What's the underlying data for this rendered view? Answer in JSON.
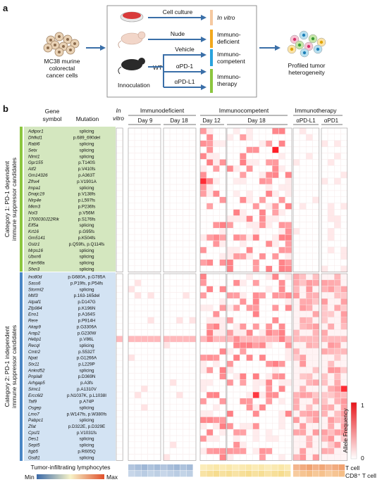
{
  "panel_a": {
    "letter": "a",
    "source_label": "MC38 murine colorectal cancer cells",
    "source_label_lines": [
      "MC38 murine",
      "colorectal",
      "cancer cells"
    ],
    "arrows": [
      "Cell culture",
      "Nude",
      "Vehicle",
      "αPD-1",
      "αPD-L1"
    ],
    "wt_label": "WT",
    "innoculation_label": "Innoculation",
    "outcomes": [
      {
        "lines": [
          "In vitro"
        ],
        "color": "#f5c9a0"
      },
      {
        "lines": [
          "Immuno-",
          "deficient"
        ],
        "color": "#f2a81d"
      },
      {
        "lines": [
          "Immuno-",
          "competent"
        ],
        "color": "#29a3dd"
      },
      {
        "lines": [
          "Immuno-",
          "therapy"
        ],
        "color": "#8cc63f"
      }
    ],
    "result_lines": [
      "Profiled tumor",
      "heterogeneity"
    ]
  },
  "panel_b": {
    "letter": "b",
    "col_gene": [
      "Gene",
      "symbol"
    ],
    "col_mutation": "Mutation",
    "col_invitro": [
      "In",
      "vitro"
    ],
    "groups": [
      "Immunodeficient",
      "Immunocompetent",
      "Immunotherapy"
    ],
    "days": [
      "Day 9",
      "Day 18",
      "Day 12",
      "Day 18",
      "αPD-L1",
      "αPD1"
    ],
    "category1": [
      "Category 1: PD-1 dependent",
      "immune suppressor candidates"
    ],
    "category2": [
      "Category 2: PD-1 independent",
      "immune suppressor candidates"
    ],
    "category1_color": "#cfe3b6",
    "category2_color": "#cfe0f0",
    "cat1_bar_color": "#8cc63f",
    "cat2_bar_color": "#4a86c5",
    "genes_cat1": [
      [
        "Adipor1",
        "splicing"
      ],
      [
        "Dhfkd1",
        "p.689_690del"
      ],
      [
        "Rabl6",
        "splicing"
      ],
      [
        "Setx",
        "splicing"
      ],
      [
        "Nlmt1",
        "splicing"
      ],
      [
        "Gpr155",
        "p.T140S"
      ],
      [
        "Atf2",
        "p.V410fs"
      ],
      [
        "Gm14326",
        "p.A363T"
      ],
      [
        "Zfhx4",
        "p.V1901A"
      ],
      [
        "Impa1",
        "splicing"
      ],
      [
        "Dnajc19",
        "p.V138fs"
      ],
      [
        "Nlrp4e",
        "p.L597fs"
      ],
      [
        "Mkm3",
        "p.P236fs"
      ],
      [
        "Nol3",
        "p.V56M"
      ],
      [
        "1700030J22Rik",
        "p.S176fs"
      ],
      [
        "Elf5a",
        "splicing"
      ],
      [
        "Krt16",
        "p.G95fs"
      ],
      [
        "Gm5141",
        "p.K504fs"
      ],
      [
        "Gstz1",
        "p.Q59fs, p.Q114fs"
      ],
      [
        "Mrps16",
        "splicing"
      ],
      [
        "Ubxn6",
        "splicing"
      ],
      [
        "Fam98a",
        "splicing"
      ],
      [
        "Sfxn3",
        "splicing"
      ]
    ],
    "genes_cat2": [
      [
        "Ino80d",
        "p.G680A, p.G785A"
      ],
      [
        "Sass6",
        "p.P19fs, p.P54fs"
      ],
      [
        "Storml2",
        "splicing"
      ],
      [
        "Mtif3",
        "p.163-165del"
      ],
      [
        "Atpaf1",
        "p.D147G"
      ],
      [
        "Zfp984",
        "p.K196N"
      ],
      [
        "Eno1",
        "p.A164S"
      ],
      [
        "Rere",
        "p.P914H"
      ],
      [
        "Akap9",
        "p.G3306A"
      ],
      [
        "Arap2",
        "p.G230W"
      ],
      [
        "Hebp1",
        "p.V86L"
      ],
      [
        "Recql",
        "splicing"
      ],
      [
        "Cmtr2",
        "p.S532T"
      ],
      [
        "Npat",
        "p.G1266A"
      ],
      [
        "Stx11",
        "p.L229P"
      ],
      [
        "Ankrd52",
        "splicing"
      ],
      [
        "Pnpla8",
        "p.D369N"
      ],
      [
        "Arhgap5",
        "p.A3fs"
      ],
      [
        "Simc1",
        "p.A1310V"
      ],
      [
        "Ercc6l2",
        "p.N1037K, p.L1038I"
      ],
      [
        "Taf9",
        "p.A74P"
      ],
      [
        "Osgep",
        "splicing"
      ],
      [
        "Lmo7",
        "p.W147fs, p.W380fs"
      ],
      [
        "Pabpc1",
        "splicing"
      ],
      [
        "Zfat",
        "p.D322E, p.D329E"
      ],
      [
        "Cpsf1",
        "p.V1031fs"
      ],
      [
        "Des1",
        "splicing"
      ],
      [
        "Sept5",
        "splicing"
      ],
      [
        "Itgb5",
        "p.R605Q"
      ],
      [
        "Gsdt1",
        "splicing"
      ]
    ],
    "legend_title": "Allele Frequency",
    "legend_max": "1",
    "legend_min": "0",
    "til_label": "Tumor-infiltrating lymphocytes",
    "til_rows": [
      "T cell",
      "CD8⁺ T cell"
    ],
    "scale_min": "Min",
    "scale_max": "Max"
  }
}
